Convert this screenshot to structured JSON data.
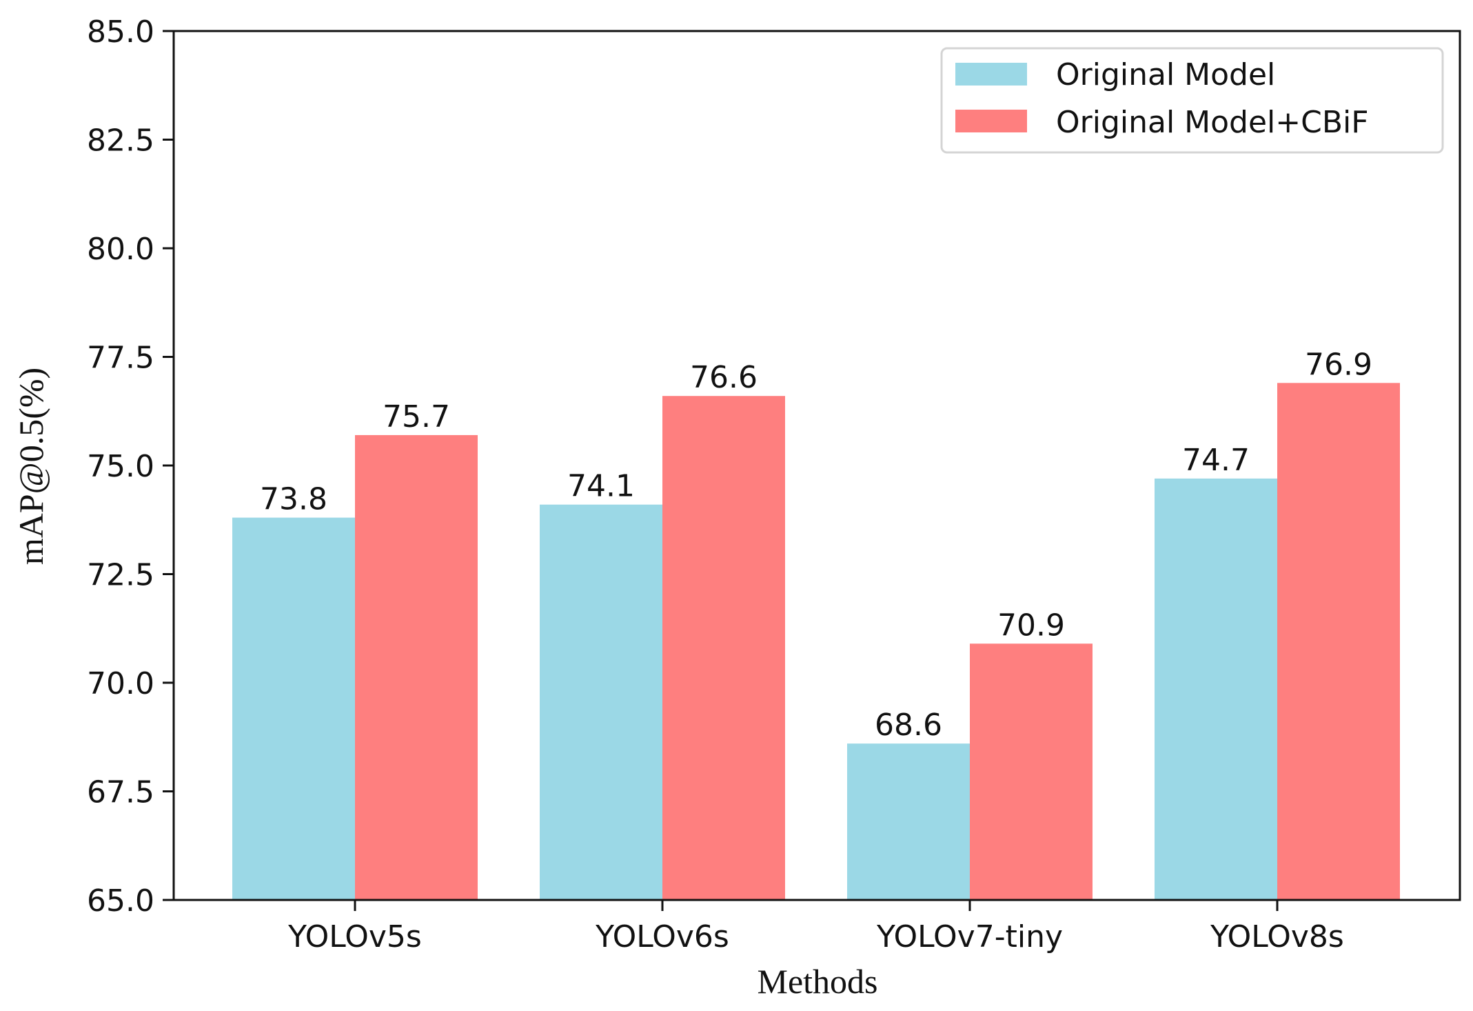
{
  "chart_data": {
    "type": "bar",
    "title": "",
    "xlabel": "Methods",
    "ylabel": "mAP@0.5(%)",
    "categories": [
      "YOLOv5s",
      "YOLOv6s",
      "YOLOv7-tiny",
      "YOLOv8s"
    ],
    "series": [
      {
        "name": "Original Model",
        "values": [
          73.8,
          74.1,
          68.6,
          74.7
        ],
        "color": "#9bd8e6"
      },
      {
        "name": "Original Model+CBiF",
        "values": [
          75.7,
          76.6,
          70.9,
          76.9
        ],
        "color": "#fe7f7f"
      }
    ],
    "value_labels": [
      [
        "73.8",
        "74.1",
        "68.6",
        "74.7"
      ],
      [
        "75.7",
        "76.6",
        "70.9",
        "76.9"
      ]
    ],
    "ylim": [
      65.0,
      85.0
    ],
    "yticks": [
      65.0,
      67.5,
      70.0,
      72.5,
      75.0,
      77.5,
      80.0,
      82.5,
      85.0
    ],
    "ytick_labels": [
      "65.0",
      "67.5",
      "70.0",
      "72.5",
      "75.0",
      "77.5",
      "80.0",
      "82.5",
      "85.0"
    ],
    "grid": false,
    "legend_position": "top-right"
  }
}
